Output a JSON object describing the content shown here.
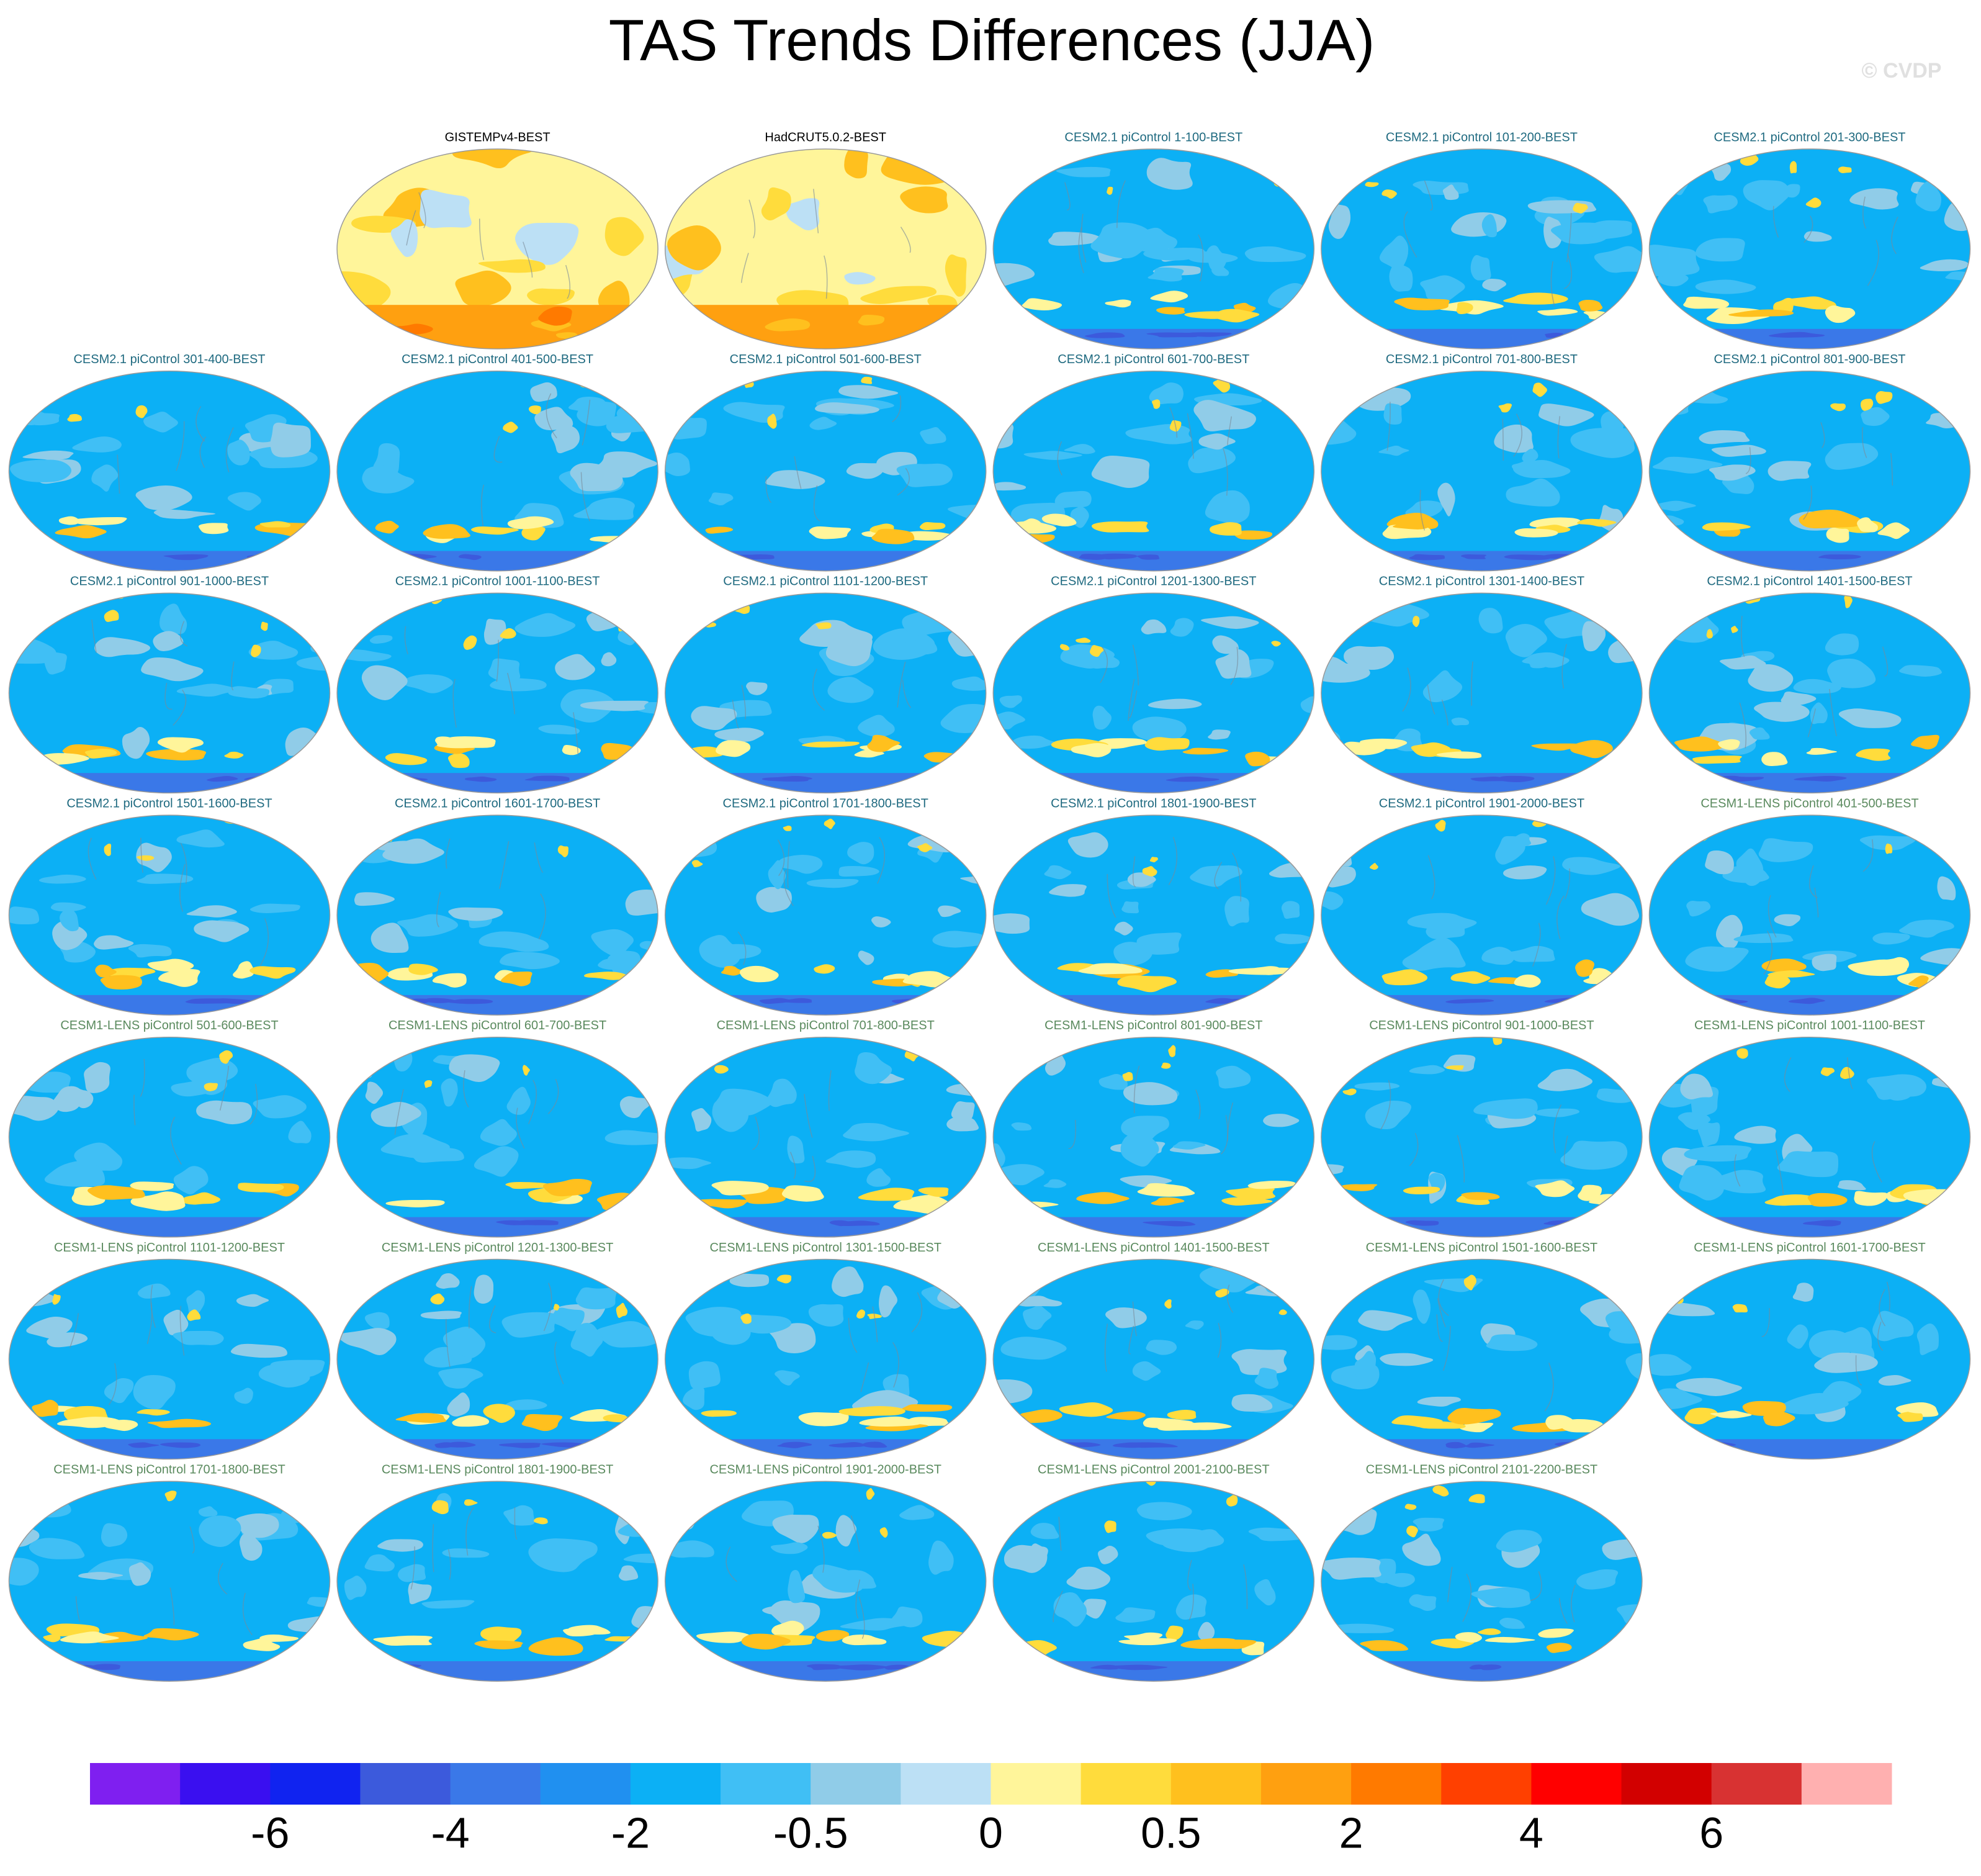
{
  "title": "TAS Trends Differences (JJA)",
  "watermark": "© CVDP",
  "groups": [
    {
      "color": "#000000",
      "panels": [
        "GISTEMPv4-BEST",
        "HadCRUT5.0.2-BEST"
      ]
    },
    {
      "color": "#1f6a80",
      "panels": [
        "CESM2.1 piControl 1-100-BEST",
        "CESM2.1 piControl 101-200-BEST",
        "CESM2.1 piControl 201-300-BEST",
        "CESM2.1 piControl 301-400-BEST",
        "CESM2.1 piControl 401-500-BEST",
        "CESM2.1 piControl 501-600-BEST",
        "CESM2.1 piControl 601-700-BEST",
        "CESM2.1 piControl 701-800-BEST",
        "CESM2.1 piControl 801-900-BEST",
        "CESM2.1 piControl 901-1000-BEST",
        "CESM2.1 piControl 1001-1100-BEST",
        "CESM2.1 piControl 1101-1200-BEST",
        "CESM2.1 piControl 1201-1300-BEST",
        "CESM2.1 piControl 1301-1400-BEST",
        "CESM2.1 piControl 1401-1500-BEST",
        "CESM2.1 piControl 1501-1600-BEST",
        "CESM2.1 piControl 1601-1700-BEST",
        "CESM2.1 piControl 1701-1800-BEST",
        "CESM2.1 piControl 1801-1900-BEST",
        "CESM2.1 piControl 1901-2000-BEST"
      ]
    },
    {
      "color": "#5a8a5e",
      "panels": [
        "CESM1-LENS piControl 401-500-BEST",
        "CESM1-LENS piControl 501-600-BEST",
        "CESM1-LENS piControl 601-700-BEST",
        "CESM1-LENS piControl 701-800-BEST",
        "CESM1-LENS piControl 801-900-BEST",
        "CESM1-LENS piControl 901-1000-BEST",
        "CESM1-LENS piControl 1001-1100-BEST",
        "CESM1-LENS piControl 1101-1200-BEST",
        "CESM1-LENS piControl 1201-1300-BEST",
        "CESM1-LENS piControl 1301-1500-BEST",
        "CESM1-LENS piControl 1401-1500-BEST",
        "CESM1-LENS piControl 1501-1600-BEST",
        "CESM1-LENS piControl 1601-1700-BEST",
        "CESM1-LENS piControl 1701-1800-BEST",
        "CESM1-LENS piControl 1801-1900-BEST",
        "CESM1-LENS piControl 1901-2000-BEST",
        "CESM1-LENS piControl 2001-2100-BEST",
        "CESM1-LENS piControl 2101-2200-BEST"
      ]
    }
  ],
  "colorbar": {
    "colors": [
      "#7f1ff0",
      "#3a0ff0",
      "#1023f0",
      "#3c5adc",
      "#3a78e8",
      "#2090f0",
      "#0cb0f5",
      "#40bff5",
      "#90cce8",
      "#bce0f5",
      "#fff59a",
      "#ffdc3c",
      "#ffc01e",
      "#ffa010",
      "#ff7a00",
      "#ff4000",
      "#ff0000",
      "#d20000",
      "#d83232",
      "#ffb0b0"
    ],
    "labels": [
      "-6",
      "-4",
      "-2",
      "-0.5",
      "0",
      "0.5",
      "2",
      "4",
      "6"
    ]
  }
}
